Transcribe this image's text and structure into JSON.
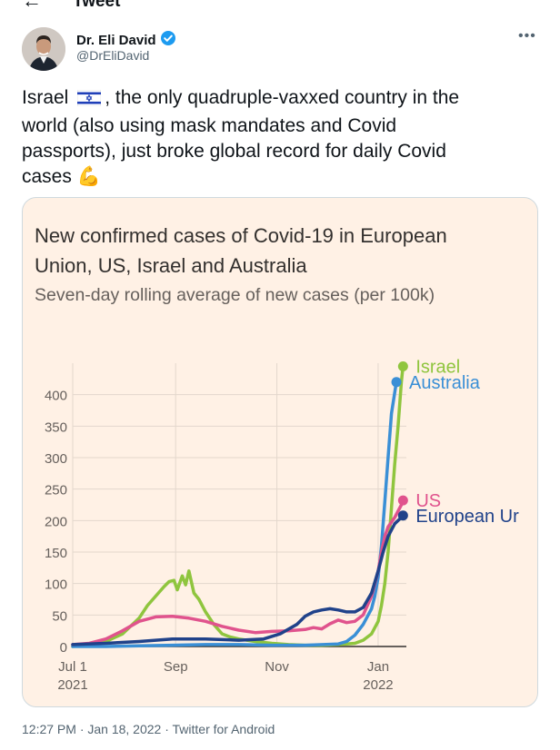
{
  "header": {
    "title": "Tweet"
  },
  "author": {
    "name": "Dr. Eli David",
    "handle": "@DrEliDavid"
  },
  "tweet": {
    "text_before_flag": "Israel",
    "text_after_flag": ", the only quadruple-vaxxed country in the\nworld (also using mask mandates and Covid\npassports), just broke global record for daily Covid\ncases ",
    "emoji": "💪"
  },
  "meta": {
    "timestamp": "12:27 PM · Jan 18, 2022 · Twitter for Android"
  },
  "colors": {
    "israel": "#8fc53e",
    "australia": "#3a8fd6",
    "us": "#e0538d",
    "eu": "#20428a",
    "card_bg": "#fff1e5",
    "grid": "#e3d7cc",
    "axis_text": "#66605c"
  },
  "chart_data": {
    "type": "line",
    "title": "New confirmed cases of Covid-19 in European Union, US, Israel and Australia",
    "subtitle": "Seven-day rolling average of new cases (per 100k)",
    "xlabel": "",
    "ylabel": "",
    "x_range_days": [
      0,
      201
    ],
    "ylim": [
      0,
      450
    ],
    "y_ticks": [
      0,
      50,
      100,
      150,
      200,
      250,
      300,
      350,
      400
    ],
    "x_ticks": [
      {
        "day": 0,
        "line1": "Jul 1",
        "line2": "2021"
      },
      {
        "day": 62,
        "line1": "Sep",
        "line2": ""
      },
      {
        "day": 123,
        "line1": "Nov",
        "line2": ""
      },
      {
        "day": 184,
        "line1": "Jan",
        "line2": "2022"
      }
    ],
    "series": [
      {
        "name": "Israel",
        "label": "Israel",
        "color": "#8fc53e",
        "x": [
          0,
          10,
          20,
          30,
          40,
          45,
          50,
          55,
          58,
          61,
          63,
          66,
          68,
          70,
          73,
          76,
          80,
          85,
          90,
          95,
          100,
          105,
          110,
          120,
          130,
          140,
          150,
          160,
          170,
          175,
          180,
          184,
          186,
          188,
          190,
          192,
          194,
          196,
          198,
          199
        ],
        "y": [
          0,
          3,
          8,
          20,
          45,
          65,
          80,
          95,
          103,
          105,
          90,
          112,
          98,
          120,
          85,
          75,
          55,
          35,
          20,
          15,
          12,
          10,
          8,
          5,
          3,
          2,
          2,
          3,
          5,
          10,
          20,
          40,
          65,
          100,
          150,
          220,
          290,
          350,
          420,
          445
        ]
      },
      {
        "name": "Australia",
        "label": "Australia",
        "color": "#3a8fd6",
        "x": [
          0,
          20,
          40,
          60,
          80,
          100,
          120,
          140,
          160,
          165,
          170,
          175,
          180,
          182,
          184,
          186,
          188,
          190,
          192,
          195
        ],
        "y": [
          0,
          0,
          1,
          2,
          3,
          3,
          2,
          2,
          4,
          8,
          18,
          35,
          60,
          80,
          110,
          160,
          230,
          300,
          370,
          420
        ]
      },
      {
        "name": "US",
        "label": "US",
        "color": "#e0538d",
        "x": [
          0,
          10,
          20,
          30,
          40,
          50,
          60,
          70,
          80,
          90,
          100,
          110,
          120,
          130,
          140,
          145,
          150,
          155,
          160,
          165,
          170,
          175,
          180,
          184,
          186,
          188,
          190,
          194,
          198,
          199
        ],
        "y": [
          3,
          5,
          12,
          25,
          40,
          47,
          48,
          45,
          40,
          32,
          26,
          22,
          24,
          25,
          27,
          30,
          28,
          36,
          42,
          38,
          40,
          50,
          80,
          120,
          150,
          175,
          190,
          205,
          225,
          232
        ]
      },
      {
        "name": "European Union",
        "label": "European Ur",
        "color": "#20428a",
        "x": [
          0,
          20,
          40,
          60,
          80,
          100,
          115,
          125,
          135,
          140,
          145,
          150,
          155,
          160,
          165,
          170,
          175,
          180,
          184,
          187,
          190,
          194,
          198,
          199
        ],
        "y": [
          3,
          5,
          8,
          12,
          12,
          10,
          12,
          20,
          35,
          48,
          55,
          58,
          60,
          58,
          55,
          55,
          62,
          85,
          120,
          150,
          175,
          195,
          205,
          208
        ]
      }
    ]
  }
}
